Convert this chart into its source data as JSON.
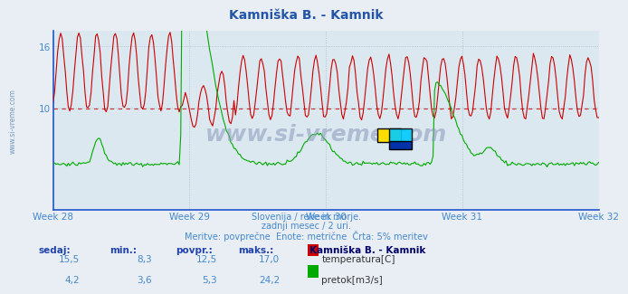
{
  "title": "Kamniška B. - Kamnik",
  "title_color": "#2255aa",
  "bg_color": "#e8eef4",
  "plot_bg_color": "#dce8f0",
  "line1_color": "#cc0000",
  "line2_color": "#00aa00",
  "y_min": 0,
  "y_max": 17.5,
  "y_ticks": [
    10,
    16
  ],
  "x_ticks_labels": [
    "Week 28",
    "Week 29",
    "Week 30",
    "Week 31",
    "Week 32"
  ],
  "x_tick_positions": [
    0,
    84,
    168,
    252,
    336
  ],
  "n_points": 360,
  "subtitle1": "Slovenija / reke in morje.",
  "subtitle2": "zadnji mesec / 2 uri.",
  "subtitle3": "Meritve: povprečne  Enote: metrične  Črta: 5% meritev",
  "subtitle_color": "#4488cc",
  "legend_title": "Kamniška B. - Kamnik",
  "legend_color": "#000066",
  "col_headers": [
    "sedaj:",
    "min.:",
    "povpr.:",
    "maks.:"
  ],
  "row1_vals": [
    "15,5",
    "8,3",
    "12,5",
    "17,0"
  ],
  "row2_vals": [
    "4,2",
    "3,6",
    "5,3",
    "24,2"
  ],
  "row1_label": "temperatura[C]",
  "row2_label": "pretok[m3/s]",
  "watermark_text": "www.si-vreme.com",
  "watermark_color": "#8899bb",
  "avg_line_y": 9.9,
  "avg_line_color": "#cc0000",
  "tick_label_color": "#4488cc",
  "grid_color": "#aabbcc",
  "spine_color": "#2255cc",
  "sidebar_text": "www.si-vreme.com",
  "sidebar_color": "#7799bb"
}
